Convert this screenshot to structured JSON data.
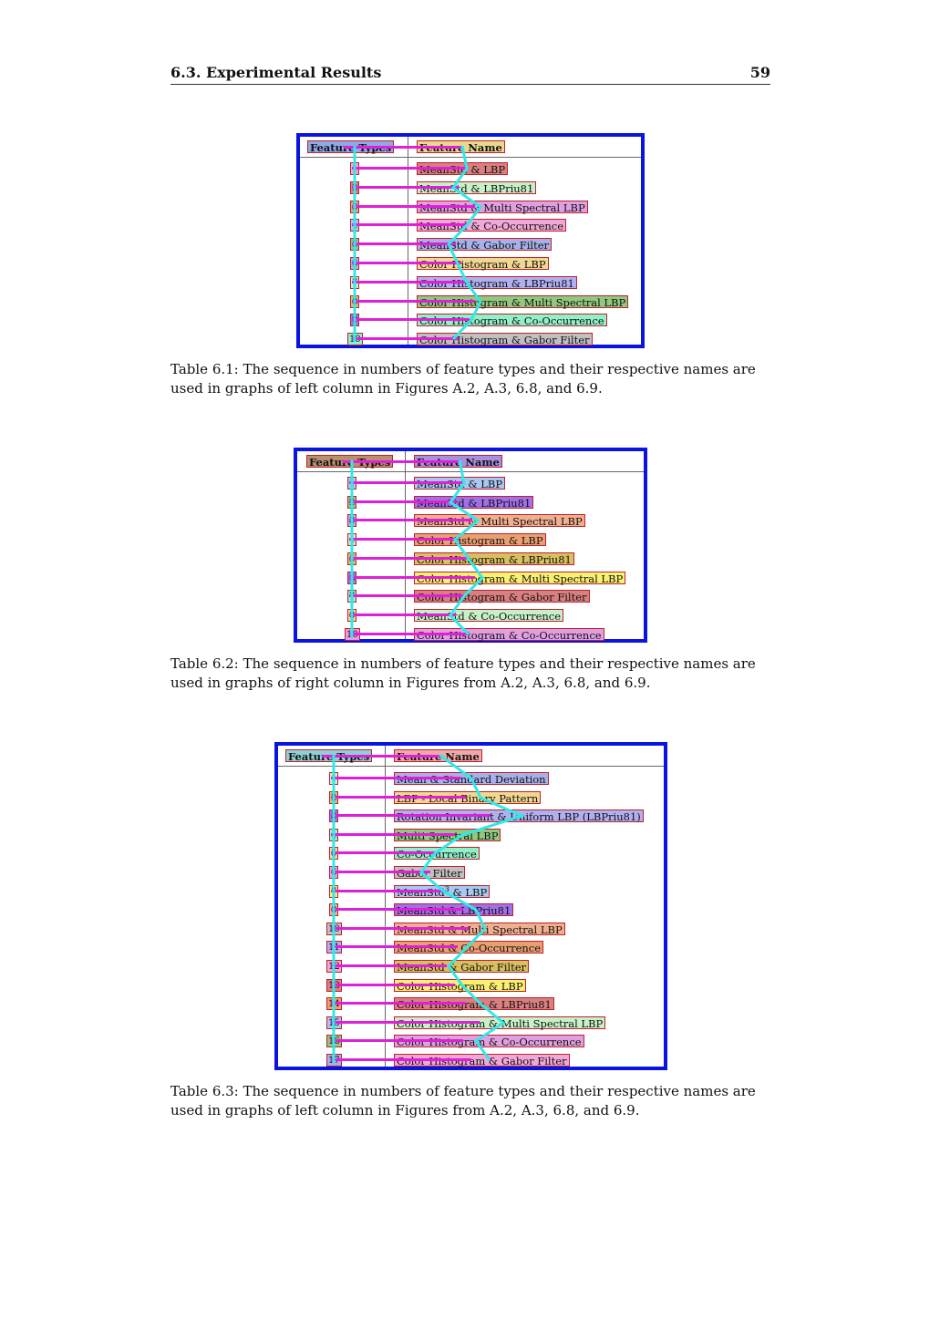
{
  "header": {
    "section": "6.3. Experimental Results",
    "page": "59"
  },
  "tables": [
    {
      "col_feature_types": "Feature Types",
      "col_feature_name": "Feature Name",
      "rows": [
        {
          "num": "1",
          "name": "MeanStd & LBP"
        },
        {
          "num": "2",
          "name": "MeanStd & LBPriu81"
        },
        {
          "num": "3",
          "name": "MeanStd & Multi Spectral LBP"
        },
        {
          "num": "4",
          "name": "MeanStd & Co-Occurrence"
        },
        {
          "num": "5",
          "name": "MeanStd & Gabor Filter"
        },
        {
          "num": "6",
          "name": "Color Histogram & LBP"
        },
        {
          "num": "7",
          "name": "Color Histogram & LBPriu81"
        },
        {
          "num": "8",
          "name": "Color Histogram & Multi Spectral LBP"
        },
        {
          "num": "9",
          "name": "Color Histogram & Co-Occurrence"
        },
        {
          "num": "10",
          "name": "Color Histogram & Gabor Filter"
        }
      ],
      "caption": "Table 6.1: The sequence in numbers of feature types and their respective names are used in graphs of left column in Figures A.2, A.3, 6.8, and 6.9."
    },
    {
      "col_feature_types": "Feature Types",
      "col_feature_name": "Feature Name",
      "rows": [
        {
          "num": "1",
          "name": "MeanStd & LBP"
        },
        {
          "num": "2",
          "name": "MeanStd & LBPriu81"
        },
        {
          "num": "3",
          "name": "MeanStd & Multi Spectral LBP"
        },
        {
          "num": "4",
          "name": "Color Histogram & LBP"
        },
        {
          "num": "5",
          "name": "Color Histogram & LBPriu81"
        },
        {
          "num": "6",
          "name": "Color Histogram & Multi Spectral LBP"
        },
        {
          "num": "7",
          "name": "Color Histogram & Gabor Filter"
        },
        {
          "num": "8",
          "name": "MeanStd & Co-Occurrence"
        },
        {
          "num": "10",
          "name": "Color Histogram & Co-Occurrence"
        }
      ],
      "caption": "Table 6.2: The sequence in numbers of feature types and their respective names are used in graphs of right column in Figures from A.2, A.3, 6.8, and 6.9."
    },
    {
      "col_feature_types": "Feature Types",
      "col_feature_name": "Feature Name",
      "rows": [
        {
          "num": "1",
          "name": "Mean & Standard Deviation"
        },
        {
          "num": "2",
          "name": "LBP - Local Binary Pattern"
        },
        {
          "num": "3",
          "name": "Rotation Invariant & Uniform LBP (LBPriu81)"
        },
        {
          "num": "4",
          "name": "Multi Spectral LBP"
        },
        {
          "num": "5",
          "name": "Co-Occurrence"
        },
        {
          "num": "6",
          "name": "Gabor Filter"
        },
        {
          "num": "7",
          "name": "MeanStd",
          "sup": "3",
          "name_suffix": " & LBP"
        },
        {
          "num": "8",
          "name": "MeanStd & LBPriu81"
        },
        {
          "num": "10",
          "name": "MeanStd & Multi Spectral LBP"
        },
        {
          "num": "11",
          "name": "MeanStd & Co-Occurrence"
        },
        {
          "num": "12",
          "name": "MeanStd & Gabor Filter"
        },
        {
          "num": "13",
          "name": "Color Histogram & LBP"
        },
        {
          "num": "14",
          "name": "Color Histogram & LBPriu81"
        },
        {
          "num": "15",
          "name": "Color Histogram & Multi Spectral LBP"
        },
        {
          "num": "16",
          "name": "Color Histogram & Co-Occurrence"
        },
        {
          "num": "17",
          "name": "Color Histogram & Gabor Filter"
        }
      ],
      "caption": "Table 6.3: The sequence in numbers of feature types and their respective names are used in graphs of left column in Figures from A.2, A.3, 6.8, and 6.9."
    }
  ]
}
